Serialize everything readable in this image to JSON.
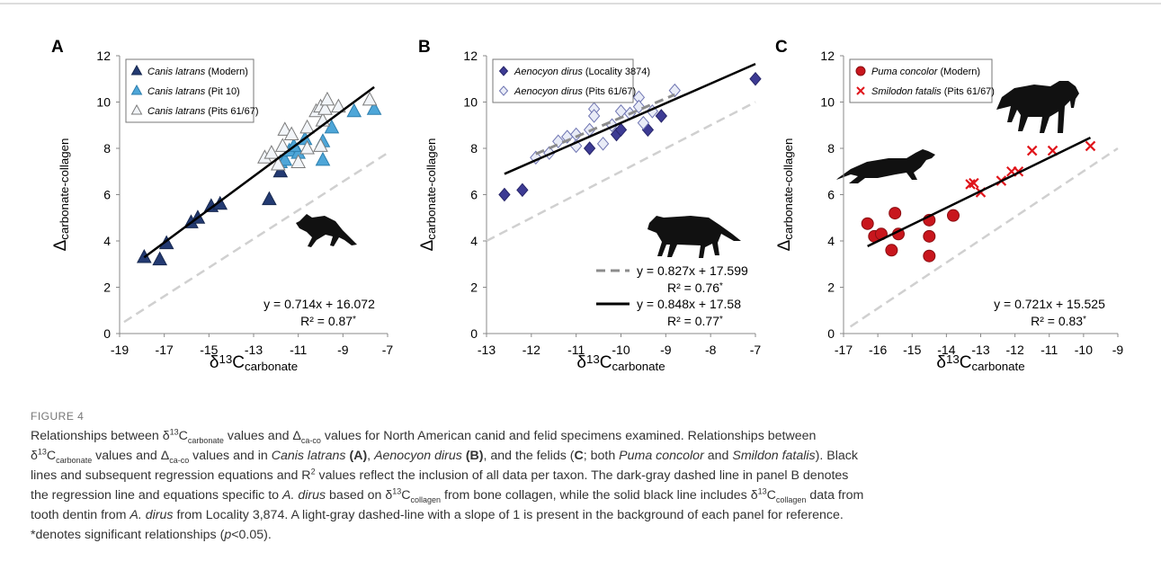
{
  "figure_label": "FIGURE 4",
  "caption": [
    [
      {
        "text": "Relationships between δ"
      },
      {
        "text": "13",
        "style": "sup"
      },
      {
        "text": "C"
      },
      {
        "text": "carbonate",
        "style": "sub"
      },
      {
        "text": " values and Δ"
      },
      {
        "text": "ca-co",
        "style": "sub"
      },
      {
        "text": " values for North American canid and felid specimens examined. Relationships between"
      }
    ],
    [
      {
        "text": "δ"
      },
      {
        "text": "13",
        "style": "sup"
      },
      {
        "text": "C"
      },
      {
        "text": "carbonate",
        "style": "sub"
      },
      {
        "text": " values and Δ"
      },
      {
        "text": "ca-co",
        "style": "sub"
      },
      {
        "text": " values and in "
      },
      {
        "text": "Canis latrans",
        "style": "i"
      },
      {
        "text": " "
      },
      {
        "text": "(A)",
        "style": "b"
      },
      {
        "text": ", "
      },
      {
        "text": "Aenocyon dirus",
        "style": "i"
      },
      {
        "text": " "
      },
      {
        "text": "(B)",
        "style": "b"
      },
      {
        "text": ", and the felids ("
      },
      {
        "text": "C",
        "style": "b"
      },
      {
        "text": "; both "
      },
      {
        "text": "Puma concolor",
        "style": "i"
      },
      {
        "text": " and "
      },
      {
        "text": "Smildon fatalis",
        "style": "i"
      },
      {
        "text": "). Black"
      }
    ],
    [
      {
        "text": "lines and subsequent regression equations and R"
      },
      {
        "text": "2",
        "style": "sup"
      },
      {
        "text": " values reflect the inclusion of all data per taxon. The dark-gray dashed line in panel B denotes"
      }
    ],
    [
      {
        "text": "the regression line and equations specific to "
      },
      {
        "text": "A. dirus",
        "style": "i"
      },
      {
        "text": " based on δ"
      },
      {
        "text": "13",
        "style": "sup"
      },
      {
        "text": "C"
      },
      {
        "text": "collagen",
        "style": "sub"
      },
      {
        "text": " from bone collagen, while the solid black line includes δ"
      },
      {
        "text": "13",
        "style": "sup"
      },
      {
        "text": "C"
      },
      {
        "text": "collagen",
        "style": "sub"
      },
      {
        "text": " data from"
      }
    ],
    [
      {
        "text": "tooth dentin from "
      },
      {
        "text": "A. dirus",
        "style": "i"
      },
      {
        "text": " from Locality 3,874. A light-gray dashed-line with a slope of 1 is present in the background of each panel for reference."
      }
    ],
    [
      {
        "text": "*denotes significant relationships ("
      },
      {
        "text": "p",
        "style": "i"
      },
      {
        "text": "<0.05)."
      }
    ]
  ],
  "chart_data": [
    {
      "type": "scatter",
      "panel": "A",
      "ylabel": [
        {
          "text": "Δ"
        },
        {
          "text": "carbonate-collagen",
          "style": "sub"
        }
      ],
      "xlabel": [
        {
          "text": "δ"
        },
        {
          "text": "13",
          "style": "sup"
        },
        {
          "text": "C"
        },
        {
          "text": "carbonate",
          "style": "sub"
        }
      ],
      "xlim": [
        -19,
        -7
      ],
      "xticks": [
        -19,
        -17,
        -15,
        -13,
        -11,
        -9,
        -7
      ],
      "ylim": [
        0,
        12
      ],
      "yticks": [
        0,
        2,
        4,
        6,
        8,
        10,
        12
      ],
      "reference": {
        "x": [
          -18.8,
          -7
        ],
        "y": [
          0.5,
          7.8
        ],
        "color": "#d0d0d0"
      },
      "series": [
        {
          "name": "Canis latrans (Modern)",
          "marker": "triangle",
          "color": "#233a72",
          "stroke": "#17284f",
          "x": [
            -17.9,
            -17.2,
            -16.9,
            -15.8,
            -15.5,
            -14.9,
            -14.5,
            -12.3,
            -11.8
          ],
          "values": [
            3.3,
            3.2,
            3.9,
            4.8,
            5.0,
            5.5,
            5.6,
            5.8,
            7.0
          ]
        },
        {
          "name": "Canis latrans (Pit 10)",
          "marker": "triangle",
          "color": "#4ea6d8",
          "stroke": "#2d7fae",
          "x": [
            -11.8,
            -11.6,
            -11.4,
            -11.0,
            -10.7,
            -9.9,
            -9.9,
            -9.5,
            -8.5,
            -7.6,
            -11.2
          ],
          "values": [
            7.4,
            7.5,
            7.9,
            7.8,
            8.4,
            7.5,
            8.3,
            8.9,
            9.6,
            9.7,
            8.1
          ]
        },
        {
          "name": "Canis latrans (Pits 61/67)",
          "marker": "triangle",
          "color": "#f2f5f9",
          "stroke": "#7a7a7a",
          "x": [
            -12.5,
            -12.2,
            -11.9,
            -11.6,
            -11.3,
            -11.0,
            -10.6,
            -10.6,
            -10.2,
            -10.0,
            -9.9,
            -9.8,
            -9.7,
            -9.2,
            -10.0,
            -7.8,
            -11.7
          ],
          "values": [
            7.6,
            7.8,
            7.3,
            8.8,
            8.6,
            7.4,
            8.9,
            8.0,
            9.6,
            9.8,
            9.2,
            9.7,
            10.1,
            9.8,
            8.1,
            10.1,
            8.1
          ]
        }
      ],
      "fits": [
        {
          "slope": 0.714,
          "intercept": 16.072,
          "x": [
            -17.9,
            -7.6
          ],
          "color": "#000000",
          "dashed": false,
          "equation": [
            {
              "text": "y = 0.714x + 16.072"
            }
          ],
          "r2": [
            {
              "text": "R² = 0.87"
            },
            {
              "text": "*",
              "style": "sup"
            }
          ]
        }
      ]
    },
    {
      "type": "scatter",
      "panel": "B",
      "ylabel": [
        {
          "text": "Δ"
        },
        {
          "text": "carbonate-collagen",
          "style": "sub"
        }
      ],
      "xlabel": [
        {
          "text": "δ"
        },
        {
          "text": "13",
          "style": "sup"
        },
        {
          "text": "C"
        },
        {
          "text": "carbonate",
          "style": "sub"
        }
      ],
      "xlim": [
        -13,
        -7
      ],
      "xticks": [
        -13,
        -12,
        -11,
        -10,
        -9,
        -8,
        -7
      ],
      "ylim": [
        0,
        12
      ],
      "yticks": [
        0,
        2,
        4,
        6,
        8,
        10,
        12
      ],
      "reference": {
        "x": [
          -13,
          -7
        ],
        "y": [
          4,
          10
        ],
        "color": "#d0d0d0"
      },
      "series": [
        {
          "name": "Aenocyon dirus (Locality 3874)",
          "marker": "diamond",
          "color": "#3d3b94",
          "stroke": "#28266a",
          "x": [
            -12.6,
            -12.2,
            -10.7,
            -10.1,
            -10.0,
            -9.4,
            -9.1,
            -7.0
          ],
          "values": [
            6.0,
            6.2,
            8.0,
            8.6,
            8.8,
            8.8,
            9.4,
            11.0
          ]
        },
        {
          "name": "Aenocyon dirus (Pits 61/67)",
          "marker": "diamond",
          "color": "#e9ecf7",
          "stroke": "#6f75b2",
          "x": [
            -11.9,
            -11.6,
            -11.4,
            -11.2,
            -11.0,
            -11.0,
            -10.7,
            -10.6,
            -10.6,
            -10.4,
            -10.0,
            -9.8,
            -9.6,
            -9.6,
            -9.5,
            -9.3,
            -8.8,
            -10.2
          ],
          "values": [
            7.6,
            7.8,
            8.3,
            8.5,
            8.6,
            8.1,
            8.8,
            9.7,
            9.4,
            8.2,
            9.6,
            9.5,
            10.2,
            9.8,
            9.1,
            9.6,
            10.5,
            9.0
          ]
        }
      ],
      "fits": [
        {
          "slope": 0.827,
          "intercept": 17.599,
          "x": [
            -11.9,
            -8.8
          ],
          "color": "#8c8c8c",
          "dashed": true,
          "sample": true,
          "equation": [
            {
              "text": "y = 0.827x + 17.599"
            }
          ],
          "r2": [
            {
              "text": "R² = 0.76"
            },
            {
              "text": "*",
              "style": "sup"
            }
          ]
        },
        {
          "slope": 0.848,
          "intercept": 17.58,
          "x": [
            -12.6,
            -7.0
          ],
          "color": "#000000",
          "dashed": false,
          "sample": true,
          "equation": [
            {
              "text": "y = 0.848x + 17.58"
            }
          ],
          "r2": [
            {
              "text": "R² = 0.77"
            },
            {
              "text": "*",
              "style": "sup"
            }
          ]
        }
      ]
    },
    {
      "type": "scatter",
      "panel": "C",
      "ylabel": [
        {
          "text": "Δ"
        },
        {
          "text": "carbonate-collagen",
          "style": "sub"
        }
      ],
      "xlabel": [
        {
          "text": "δ"
        },
        {
          "text": "13",
          "style": "sup"
        },
        {
          "text": "C"
        },
        {
          "text": "carbonate",
          "style": "sub"
        }
      ],
      "xlim": [
        -17,
        -9
      ],
      "xticks": [
        -17,
        -16,
        -15,
        -14,
        -13,
        -12,
        -11,
        -10,
        -9
      ],
      "ylim": [
        0,
        12
      ],
      "yticks": [
        0,
        2,
        4,
        6,
        8,
        10,
        12
      ],
      "reference": {
        "x": [
          -16.8,
          -9
        ],
        "y": [
          0.3,
          8.0
        ],
        "color": "#d0d0d0"
      },
      "series": [
        {
          "name": "Puma concolor (Modern)",
          "marker": "circle",
          "color": "#c8161d",
          "stroke": "#8a0e12",
          "x": [
            -16.3,
            -16.1,
            -15.9,
            -15.6,
            -15.5,
            -15.4,
            -14.5,
            -14.5,
            -14.5,
            -13.8
          ],
          "values": [
            4.75,
            4.2,
            4.3,
            3.6,
            5.2,
            4.3,
            4.9,
            4.2,
            3.35,
            5.1
          ]
        },
        {
          "name": "Smilodon fatalis (Pits 61/67)",
          "marker": "cross",
          "color": "#e0151b",
          "stroke": "#e0151b",
          "x": [
            -13.3,
            -13.2,
            -13.0,
            -12.4,
            -12.1,
            -11.9,
            -11.5,
            -10.9,
            -9.8
          ],
          "values": [
            6.45,
            6.5,
            6.1,
            6.6,
            7.0,
            7.0,
            7.9,
            7.9,
            8.1
          ]
        }
      ],
      "fits": [
        {
          "slope": 0.721,
          "intercept": 15.525,
          "x": [
            -16.3,
            -9.8
          ],
          "color": "#000000",
          "dashed": false,
          "equation": [
            {
              "text": "y = 0.721x + 15.525"
            }
          ],
          "r2": [
            {
              "text": "R² = 0.83"
            },
            {
              "text": "*",
              "style": "sup"
            }
          ]
        }
      ]
    }
  ]
}
